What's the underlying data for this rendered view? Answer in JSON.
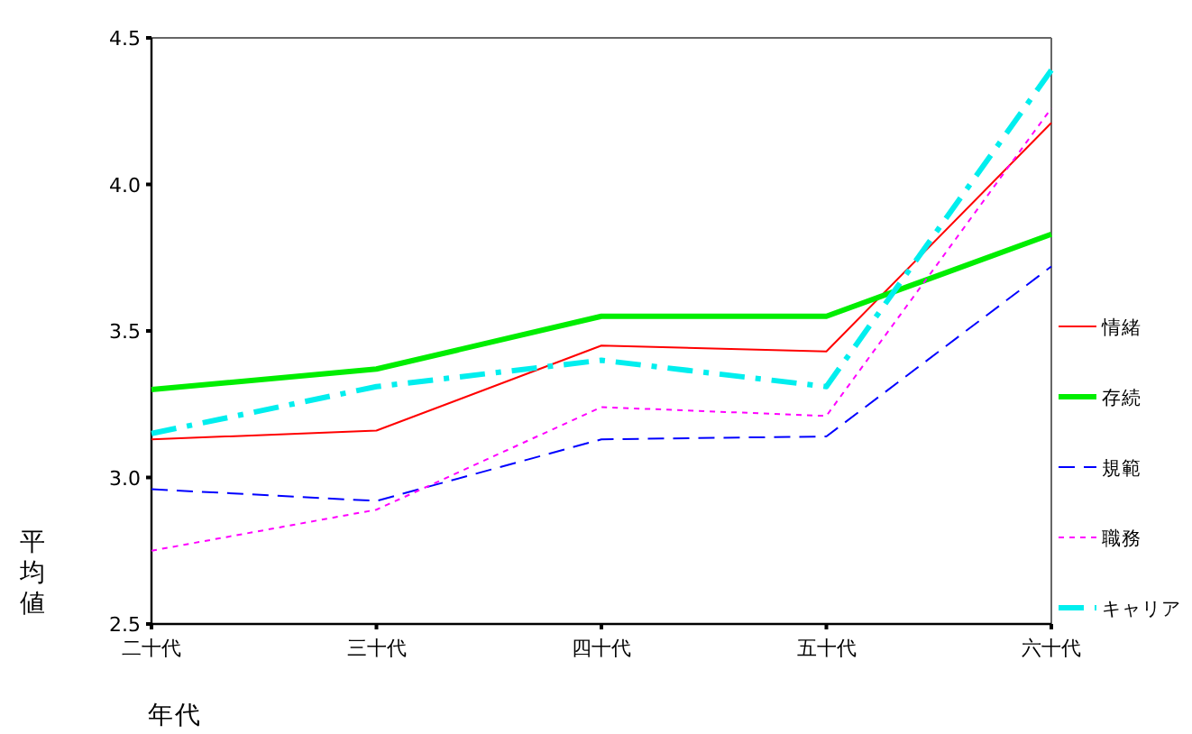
{
  "chart_data": {
    "type": "line",
    "xlabel": "年代",
    "ylabel": "平均値",
    "categories": [
      "二十代",
      "三十代",
      "四十代",
      "五十代",
      "六十代"
    ],
    "ylim": [
      2.5,
      4.5
    ],
    "yticks": [
      2.5,
      {
        "value": 3,
        "label": "3.0"
      },
      3.5,
      {
        "value": 4,
        "label": "4.0"
      },
      4.5
    ],
    "legend": "right",
    "grid": false,
    "marker": "none",
    "series": [
      {
        "name": "情緒",
        "color": "#ff0000",
        "line_style": "solid",
        "values": [
          3.13,
          3.16,
          3.45,
          3.43,
          4.21
        ]
      },
      {
        "name": "存続",
        "color": "#00ee00",
        "line_style": "solid",
        "values": [
          3.3,
          3.37,
          3.55,
          3.55,
          3.83
        ]
      },
      {
        "name": "規範",
        "color": "#0000ff",
        "line_style": "dashed",
        "values": [
          2.96,
          2.92,
          3.13,
          3.14,
          3.72
        ]
      },
      {
        "name": "職務",
        "color": "#ff00ff",
        "line_style": "dotted",
        "values": [
          2.75,
          2.89,
          3.24,
          3.21,
          4.26
        ]
      },
      {
        "name": "キャリア",
        "color": "#00eeee",
        "line_style": "dashdot",
        "values": [
          3.15,
          3.31,
          3.4,
          3.31,
          4.39
        ]
      }
    ]
  }
}
